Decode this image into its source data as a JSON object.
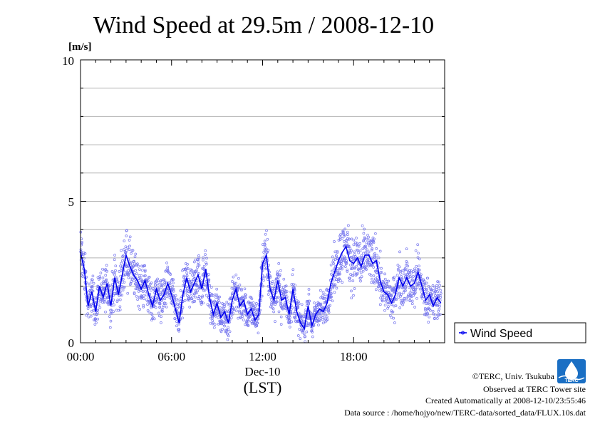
{
  "chart_data": {
    "type": "scatter",
    "title": "Wind Speed at 29.5m / 2008-12-10",
    "ylabel": "[m/s]",
    "xlabel_date": "Dec-10",
    "xlabel_tz": "(LST)",
    "x_unit": "hours",
    "xlim": [
      0,
      24
    ],
    "ylim": [
      0,
      10
    ],
    "grid": true,
    "legend_placement": "right",
    "y_ticks": [
      "0",
      "5",
      "10"
    ],
    "x_ticks": [
      {
        "x": 0,
        "label": "00:00"
      },
      {
        "x": 6,
        "label": "06:00"
      },
      {
        "x": 12,
        "label": "12:00"
      },
      {
        "x": 18,
        "label": "18:00"
      }
    ],
    "series": [
      {
        "name": "Wind Speed",
        "color": "#0000ee",
        "x": [
          0.0,
          0.25,
          0.5,
          0.75,
          1.0,
          1.25,
          1.5,
          1.75,
          2.0,
          2.25,
          2.5,
          2.75,
          3.0,
          3.25,
          3.5,
          3.75,
          4.0,
          4.25,
          4.5,
          4.75,
          5.0,
          5.25,
          5.5,
          5.75,
          6.0,
          6.25,
          6.5,
          6.75,
          7.0,
          7.25,
          7.5,
          7.75,
          8.0,
          8.25,
          8.5,
          8.75,
          9.0,
          9.25,
          9.5,
          9.75,
          10.0,
          10.25,
          10.5,
          10.75,
          11.0,
          11.25,
          11.5,
          11.75,
          12.0,
          12.25,
          12.5,
          12.75,
          13.0,
          13.25,
          13.5,
          13.75,
          14.0,
          14.25,
          14.5,
          14.75,
          15.0,
          15.25,
          15.5,
          15.75,
          16.0,
          16.25,
          16.5,
          16.75,
          17.0,
          17.25,
          17.5,
          17.75,
          18.0,
          18.25,
          18.5,
          18.75,
          19.0,
          19.25,
          19.5,
          19.75,
          20.0,
          20.25,
          20.5,
          20.75,
          21.0,
          21.25,
          21.5,
          21.75,
          22.0,
          22.25,
          22.5,
          22.75,
          23.0,
          23.25,
          23.5,
          23.75
        ],
        "values": [
          3.2,
          2.6,
          1.3,
          1.8,
          1.1,
          2.0,
          1.6,
          2.1,
          1.3,
          2.3,
          1.7,
          2.4,
          3.1,
          2.7,
          2.4,
          2.2,
          1.9,
          2.2,
          1.7,
          1.3,
          1.9,
          1.5,
          1.7,
          2.1,
          1.7,
          1.2,
          0.7,
          1.7,
          2.3,
          1.8,
          2.1,
          2.4,
          1.9,
          2.6,
          1.6,
          1.0,
          1.4,
          0.9,
          1.1,
          0.7,
          1.5,
          1.9,
          1.3,
          1.5,
          1.0,
          1.2,
          0.8,
          1.0,
          2.8,
          3.1,
          1.9,
          1.5,
          2.2,
          1.5,
          1.6,
          1.0,
          1.9,
          1.1,
          0.7,
          0.5,
          1.3,
          0.6,
          1.0,
          1.2,
          1.1,
          1.4,
          2.1,
          2.5,
          2.9,
          3.2,
          3.4,
          2.9,
          2.8,
          3.0,
          2.7,
          3.1,
          3.1,
          2.8,
          2.9,
          2.2,
          1.8,
          1.7,
          1.4,
          1.7,
          2.3,
          2.0,
          2.3,
          2.0,
          2.1,
          2.5,
          2.0,
          1.5,
          1.7,
          1.3,
          1.6,
          1.4
        ]
      }
    ]
  },
  "credits": {
    "copyright": "©TERC, Univ. Tsukuba",
    "observed": "Observed at TERC Tower site",
    "created": "Created Automatically at 2008-12-10/23:55:46",
    "source": "Data source : /home/hojyo/new/TERC-data/sorted_data/FLUX.10s.dat"
  },
  "logo": {
    "text": "TERC",
    "color": "#1a6fc4",
    "icon": "water-drop-icon"
  }
}
